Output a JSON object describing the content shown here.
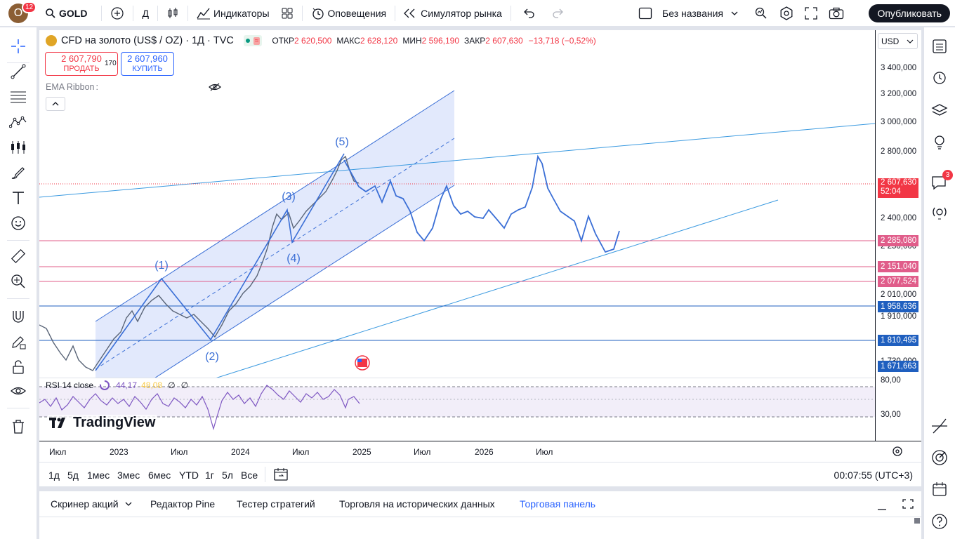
{
  "topbar": {
    "avatar_letter": "O",
    "notification_count": "12",
    "symbol": "GOLD",
    "interval": "Д",
    "indicators": "Индикаторы",
    "alerts": "Оповещения",
    "replay": "Симулятор рынка",
    "layout_name": "Без названия",
    "publish": "Опубликовать"
  },
  "legend": {
    "title": "CFD на золото (US$ / OZ) · 1Д · TVC",
    "open_label": "ОТКР",
    "open": "2 620,500",
    "high_label": "МАКС",
    "high": "2 628,120",
    "low_label": "МИН",
    "low": "2 596,190",
    "close_label": "ЗАКР",
    "close": "2 607,630",
    "change": "−13,718 (−0,52%)"
  },
  "trade": {
    "sell_price": "2 607,790",
    "sell_label": "ПРОДАТЬ",
    "spread": "170",
    "buy_price": "2 607,960",
    "buy_label": "КУПИТЬ"
  },
  "indicator_ema": "EMA Ribbon",
  "rsi": {
    "label": "RSI 14 close",
    "value1": "44,17",
    "value2": "48,08",
    "na1": "∅",
    "na2": "∅",
    "levels": [
      "80,00",
      "30,00"
    ]
  },
  "currency": "USD",
  "price_scale": [
    "3 400,000",
    "3 200,000",
    "3 000,000",
    "2 800,000",
    "2 400,000",
    "2 250,000",
    "2 010,000",
    "1 910,000",
    "1 730,000"
  ],
  "price_markers": [
    {
      "value": "2 607,630",
      "sub": "52:04",
      "color": "#f23645"
    },
    {
      "value": "2 285,080",
      "color": "#e05d8a"
    },
    {
      "value": "2 151,040",
      "color": "#e05d8a"
    },
    {
      "value": "2 077,524",
      "color": "#e05d8a"
    },
    {
      "value": "1 958,636",
      "color": "#1f5fbf"
    },
    {
      "value": "1 810,495",
      "color": "#1f5fbf"
    },
    {
      "value": "1 671,663",
      "color": "#1f5fbf"
    }
  ],
  "time_axis": [
    "Июл",
    "2023",
    "Июл",
    "2024",
    "Июл",
    "2025",
    "Июл",
    "2026",
    "Июл"
  ],
  "wave_labels": [
    "(1)",
    "(2)",
    "(3)",
    "(4)",
    "(5)"
  ],
  "brand": "TradingView",
  "ranges": [
    "1д",
    "5д",
    "1мес",
    "3мес",
    "6мес",
    "YTD",
    "1г",
    "5л",
    "Все"
  ],
  "clock": "00:07:55 (UTC+3)",
  "bottom_tabs": [
    "Скринер акций",
    "Редактор Pine",
    "Тестер стратегий",
    "Торговля на исторических данных",
    "Торговая панель"
  ],
  "right_badge": "3",
  "colors": {
    "accent": "#2962ff",
    "down": "#f23645",
    "channel": "#d6e0fb",
    "wave": "#3b6fd6"
  }
}
